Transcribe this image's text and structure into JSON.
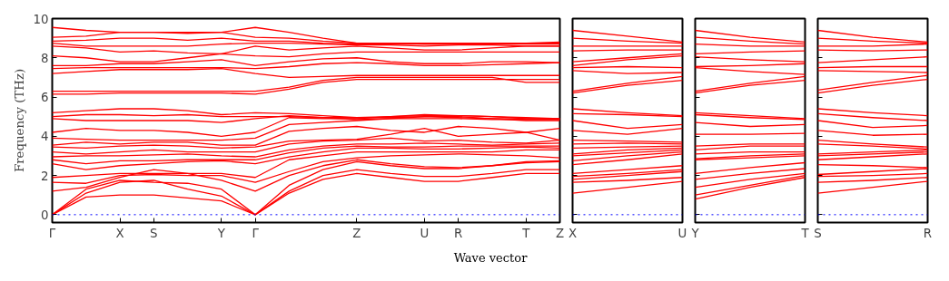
{
  "chart_data": [
    {
      "type": "line",
      "ylabel": "Frequency (THz)",
      "xlabel": "Wave vector",
      "ylim": [
        -0.4,
        10
      ],
      "yticks": [
        0,
        2,
        4,
        6,
        8,
        10
      ],
      "categories": [
        "Γ",
        null,
        "X",
        "S",
        null,
        "Y",
        "Γ",
        null,
        null,
        "Z",
        null,
        "U",
        "R",
        null,
        "T",
        "Z"
      ],
      "grid": false,
      "line_style": "solid",
      "ref_lines": [
        {
          "axis": "y",
          "value": 0,
          "color": "#0000ff",
          "line_style": "dotted"
        }
      ],
      "series": [
        {
          "color": "#ff0000",
          "values": [
            0,
            0.9,
            1.0,
            1.0,
            0.85,
            0.7,
            0,
            1.1,
            1.8,
            2.1,
            1.9,
            1.7,
            1.7,
            1.9,
            2.1,
            2.1
          ]
        },
        {
          "color": "#ff0000",
          "values": [
            0,
            1.1,
            1.65,
            1.75,
            1.3,
            0.95,
            0,
            1.2,
            2.0,
            2.3,
            2.1,
            1.95,
            1.95,
            2.1,
            2.3,
            2.3
          ]
        },
        {
          "color": "#ff0000",
          "values": [
            0,
            1.3,
            1.75,
            1.65,
            1.6,
            1.3,
            0,
            1.5,
            2.3,
            2.7,
            2.5,
            2.35,
            2.35,
            2.5,
            2.65,
            2.7
          ]
        },
        {
          "color": "#ff0000",
          "values": [
            1.2,
            1.4,
            1.9,
            2.3,
            2.1,
            1.75,
            1.2,
            2.0,
            2.5,
            2.8,
            2.6,
            2.45,
            2.4,
            2.5,
            2.7,
            2.75
          ]
        },
        {
          "color": "#ff0000",
          "values": [
            1.65,
            1.6,
            2.0,
            2.05,
            2.0,
            2.0,
            1.65,
            2.2,
            2.7,
            2.9,
            3.0,
            3.05,
            3.1,
            3.05,
            3.0,
            2.9
          ]
        },
        {
          "color": "#ff0000",
          "values": [
            1.9,
            2.0,
            2.1,
            2.1,
            2.1,
            2.1,
            1.9,
            2.8,
            3.0,
            3.2,
            3.2,
            3.2,
            3.2,
            3.2,
            3.3,
            3.3
          ]
        },
        {
          "color": "#ff0000",
          "values": [
            2.6,
            2.3,
            2.5,
            2.6,
            2.7,
            2.75,
            2.6,
            2.95,
            3.2,
            3.4,
            3.4,
            3.35,
            3.35,
            3.4,
            3.45,
            3.4
          ]
        },
        {
          "color": "#ff0000",
          "values": [
            2.8,
            2.6,
            2.75,
            2.75,
            2.8,
            2.8,
            2.8,
            3.15,
            3.4,
            3.5,
            3.45,
            3.45,
            3.5,
            3.5,
            3.5,
            3.5
          ]
        },
        {
          "color": "#ff0000",
          "values": [
            2.95,
            3.0,
            3.0,
            3.05,
            3.1,
            3.0,
            2.95,
            3.3,
            3.5,
            3.6,
            3.6,
            3.65,
            3.6,
            3.55,
            3.6,
            3.65
          ]
        },
        {
          "color": "#ff0000",
          "values": [
            3.2,
            3.1,
            3.2,
            3.3,
            3.2,
            3.2,
            3.2,
            3.6,
            3.75,
            3.8,
            3.9,
            3.75,
            3.8,
            3.7,
            3.65,
            3.8
          ]
        },
        {
          "color": "#ff0000",
          "values": [
            3.45,
            3.4,
            3.5,
            3.55,
            3.5,
            3.4,
            3.45,
            3.75,
            3.8,
            3.85,
            4.1,
            4.4,
            4.0,
            4.1,
            4.2,
            3.8
          ]
        },
        {
          "color": "#ff0000",
          "values": [
            3.55,
            3.7,
            3.6,
            3.7,
            3.7,
            3.55,
            3.55,
            4.25,
            4.4,
            4.5,
            4.3,
            4.2,
            4.5,
            4.4,
            4.2,
            4.4
          ]
        },
        {
          "color": "#ff0000",
          "values": [
            3.9,
            3.85,
            3.8,
            3.8,
            3.8,
            3.8,
            3.9,
            4.6,
            4.7,
            4.8,
            4.9,
            5.0,
            5.0,
            4.9,
            4.8,
            4.8
          ]
        },
        {
          "color": "#ff0000",
          "values": [
            4.2,
            4.4,
            4.3,
            4.3,
            4.2,
            4.0,
            4.2,
            4.95,
            4.9,
            4.9,
            5.0,
            5.1,
            5.05,
            5.0,
            4.9,
            4.9
          ]
        },
        {
          "color": "#ff0000",
          "values": [
            4.9,
            4.8,
            4.8,
            4.8,
            4.8,
            4.7,
            4.9,
            5.05,
            4.95,
            4.85,
            4.9,
            4.9,
            4.9,
            4.85,
            4.85,
            4.85
          ]
        },
        {
          "color": "#ff0000",
          "values": [
            5.0,
            5.1,
            5.1,
            5.05,
            5.1,
            5.0,
            5.0,
            5.0,
            4.95,
            4.95,
            5.0,
            5.05,
            5.05,
            5.0,
            4.95,
            4.9
          ]
        },
        {
          "color": "#ff0000",
          "values": [
            5.2,
            5.3,
            5.4,
            5.4,
            5.3,
            5.1,
            5.2,
            5.15,
            5.05,
            4.95,
            4.95,
            5.0,
            4.95,
            4.9,
            4.88,
            4.88
          ]
        },
        {
          "color": "#ff0000",
          "values": [
            6.15,
            6.15,
            6.2,
            6.2,
            6.2,
            6.2,
            6.15,
            6.4,
            6.75,
            6.9,
            6.9,
            6.9,
            6.9,
            6.9,
            6.9,
            6.9
          ]
        },
        {
          "color": "#ff0000",
          "values": [
            6.3,
            6.3,
            6.3,
            6.3,
            6.3,
            6.3,
            6.3,
            6.5,
            6.85,
            7.0,
            7.0,
            7.0,
            7.0,
            7.0,
            6.75,
            6.75
          ]
        },
        {
          "color": "#ff0000",
          "values": [
            7.2,
            7.3,
            7.4,
            7.4,
            7.4,
            7.45,
            7.2,
            7.0,
            7.05,
            7.1,
            7.1,
            7.1,
            7.1,
            7.1,
            7.1,
            7.1
          ]
        },
        {
          "color": "#ff0000",
          "values": [
            7.45,
            7.5,
            7.5,
            7.5,
            7.5,
            7.5,
            7.45,
            7.55,
            7.7,
            7.75,
            7.7,
            7.6,
            7.6,
            7.65,
            7.7,
            7.75
          ]
        },
        {
          "color": "#ff0000",
          "values": [
            7.6,
            7.6,
            7.7,
            7.7,
            7.8,
            7.9,
            7.6,
            7.8,
            7.95,
            8.0,
            7.8,
            7.7,
            7.7,
            7.8,
            7.8,
            7.75
          ]
        },
        {
          "color": "#ff0000",
          "values": [
            8.1,
            8.0,
            7.8,
            7.8,
            8.0,
            8.2,
            8.1,
            8.05,
            8.2,
            8.3,
            8.3,
            8.3,
            8.3,
            8.3,
            8.3,
            8.3
          ]
        },
        {
          "color": "#ff0000",
          "values": [
            8.6,
            8.5,
            8.3,
            8.35,
            8.25,
            8.2,
            8.6,
            8.4,
            8.5,
            8.6,
            8.5,
            8.4,
            8.4,
            8.5,
            8.6,
            8.6
          ]
        },
        {
          "color": "#ff0000",
          "values": [
            8.75,
            8.6,
            8.6,
            8.6,
            8.6,
            8.7,
            8.75,
            8.75,
            8.7,
            8.65,
            8.65,
            8.6,
            8.65,
            8.65,
            8.6,
            8.6
          ]
        },
        {
          "color": "#ff0000",
          "values": [
            8.85,
            8.9,
            9.0,
            9.0,
            8.9,
            9.0,
            8.85,
            8.85,
            8.75,
            8.7,
            8.7,
            8.7,
            8.7,
            8.7,
            8.7,
            8.7
          ]
        },
        {
          "color": "#ff0000",
          "values": [
            9.05,
            9.1,
            9.3,
            9.3,
            9.3,
            9.3,
            9.05,
            9.0,
            8.85,
            8.75,
            8.75,
            8.7,
            8.7,
            8.75,
            8.75,
            8.75
          ]
        },
        {
          "color": "#ff0000",
          "values": [
            9.55,
            9.4,
            9.3,
            9.3,
            9.25,
            9.3,
            9.55,
            9.3,
            9.0,
            8.75,
            8.75,
            8.75,
            8.75,
            8.75,
            8.75,
            8.8
          ]
        }
      ]
    },
    {
      "type": "line",
      "categories": [
        "X",
        null,
        "U"
      ],
      "ylim": [
        -0.4,
        10
      ],
      "yticks": [
        0,
        2,
        4,
        6,
        8,
        10
      ],
      "tick_labels": "x",
      "grid": false,
      "line_style": "solid",
      "ref_lines": [
        {
          "axis": "y",
          "value": 0,
          "color": "#0000ff",
          "line_style": "dotted"
        }
      ],
      "series": [
        {
          "color": "#ff0000",
          "values": [
            1.1,
            1.4,
            1.7
          ]
        },
        {
          "color": "#ff0000",
          "values": [
            1.65,
            1.75,
            1.9
          ]
        },
        {
          "color": "#ff0000",
          "values": [
            1.8,
            2.0,
            2.2
          ]
        },
        {
          "color": "#ff0000",
          "values": [
            1.95,
            2.1,
            2.3
          ]
        },
        {
          "color": "#ff0000",
          "values": [
            2.1,
            2.3,
            2.5
          ]
        },
        {
          "color": "#ff0000",
          "values": [
            2.55,
            2.8,
            3.1
          ]
        },
        {
          "color": "#ff0000",
          "values": [
            2.75,
            3.0,
            3.2
          ]
        },
        {
          "color": "#ff0000",
          "values": [
            3.0,
            3.15,
            3.3
          ]
        },
        {
          "color": "#ff0000",
          "values": [
            3.1,
            3.3,
            3.4
          ]
        },
        {
          "color": "#ff0000",
          "values": [
            3.4,
            3.45,
            3.5
          ]
        },
        {
          "color": "#ff0000",
          "values": [
            3.6,
            3.65,
            3.6
          ]
        },
        {
          "color": "#ff0000",
          "values": [
            3.8,
            3.75,
            3.7
          ]
        },
        {
          "color": "#ff0000",
          "values": [
            4.3,
            4.1,
            4.4
          ]
        },
        {
          "color": "#ff0000",
          "values": [
            4.8,
            4.4,
            4.6
          ]
        },
        {
          "color": "#ff0000",
          "values": [
            5.15,
            5.1,
            5.0
          ]
        },
        {
          "color": "#ff0000",
          "values": [
            5.4,
            5.2,
            5.05
          ]
        },
        {
          "color": "#ff0000",
          "values": [
            6.2,
            6.6,
            6.85
          ]
        },
        {
          "color": "#ff0000",
          "values": [
            6.3,
            6.7,
            7.05
          ]
        },
        {
          "color": "#ff0000",
          "values": [
            7.35,
            7.2,
            7.25
          ]
        },
        {
          "color": "#ff0000",
          "values": [
            7.5,
            7.55,
            7.5
          ]
        },
        {
          "color": "#ff0000",
          "values": [
            7.6,
            7.9,
            8.1
          ]
        },
        {
          "color": "#ff0000",
          "values": [
            7.8,
            8.0,
            8.2
          ]
        },
        {
          "color": "#ff0000",
          "values": [
            8.35,
            8.4,
            8.4
          ]
        },
        {
          "color": "#ff0000",
          "values": [
            8.6,
            8.6,
            8.6
          ]
        },
        {
          "color": "#ff0000",
          "values": [
            9.0,
            8.85,
            8.75
          ]
        },
        {
          "color": "#ff0000",
          "values": [
            9.4,
            9.1,
            8.8
          ]
        }
      ]
    },
    {
      "type": "line",
      "categories": [
        "Y",
        null,
        "T"
      ],
      "ylim": [
        -0.4,
        10
      ],
      "yticks": [
        0,
        2,
        4,
        6,
        8,
        10
      ],
      "tick_labels": "x",
      "grid": false,
      "line_style": "solid",
      "ref_lines": [
        {
          "axis": "y",
          "value": 0,
          "color": "#0000ff",
          "line_style": "dotted"
        }
      ],
      "series": [
        {
          "color": "#ff0000",
          "values": [
            0.8,
            1.4,
            1.9
          ]
        },
        {
          "color": "#ff0000",
          "values": [
            1.0,
            1.5,
            2.0
          ]
        },
        {
          "color": "#ff0000",
          "values": [
            1.4,
            1.8,
            2.1
          ]
        },
        {
          "color": "#ff0000",
          "values": [
            1.8,
            2.1,
            2.35
          ]
        },
        {
          "color": "#ff0000",
          "values": [
            2.1,
            2.4,
            2.65
          ]
        },
        {
          "color": "#ff0000",
          "values": [
            2.8,
            2.9,
            3.0
          ]
        },
        {
          "color": "#ff0000",
          "values": [
            2.85,
            3.0,
            3.1
          ]
        },
        {
          "color": "#ff0000",
          "values": [
            3.1,
            3.2,
            3.2
          ]
        },
        {
          "color": "#ff0000",
          "values": [
            3.3,
            3.5,
            3.5
          ]
        },
        {
          "color": "#ff0000",
          "values": [
            3.5,
            3.6,
            3.6
          ]
        },
        {
          "color": "#ff0000",
          "values": [
            4.1,
            4.1,
            4.15
          ]
        },
        {
          "color": "#ff0000",
          "values": [
            4.7,
            4.5,
            4.6
          ]
        },
        {
          "color": "#ff0000",
          "values": [
            5.1,
            4.95,
            4.85
          ]
        },
        {
          "color": "#ff0000",
          "values": [
            5.2,
            5.05,
            4.9
          ]
        },
        {
          "color": "#ff0000",
          "values": [
            6.2,
            6.6,
            6.85
          ]
        },
        {
          "color": "#ff0000",
          "values": [
            6.3,
            6.7,
            7.05
          ]
        },
        {
          "color": "#ff0000",
          "values": [
            7.5,
            7.3,
            7.15
          ]
        },
        {
          "color": "#ff0000",
          "values": [
            7.55,
            7.6,
            7.7
          ]
        },
        {
          "color": "#ff0000",
          "values": [
            8.05,
            7.9,
            7.8
          ]
        },
        {
          "color": "#ff0000",
          "values": [
            8.2,
            8.3,
            8.35
          ]
        },
        {
          "color": "#ff0000",
          "values": [
            8.7,
            8.6,
            8.6
          ]
        },
        {
          "color": "#ff0000",
          "values": [
            9.05,
            8.85,
            8.7
          ]
        },
        {
          "color": "#ff0000",
          "values": [
            9.4,
            9.05,
            8.8
          ]
        }
      ]
    },
    {
      "type": "line",
      "categories": [
        "S",
        null,
        "R"
      ],
      "ylim": [
        -0.4,
        10
      ],
      "yticks": [
        0,
        2,
        4,
        6,
        8,
        10
      ],
      "tick_labels": "x",
      "grid": false,
      "line_style": "solid",
      "ref_lines": [
        {
          "axis": "y",
          "value": 0,
          "color": "#0000ff",
          "line_style": "dotted"
        }
      ],
      "series": [
        {
          "color": "#ff0000",
          "values": [
            1.1,
            1.4,
            1.7
          ]
        },
        {
          "color": "#ff0000",
          "values": [
            1.65,
            1.75,
            1.9
          ]
        },
        {
          "color": "#ff0000",
          "values": [
            1.95,
            2.0,
            2.1
          ]
        },
        {
          "color": "#ff0000",
          "values": [
            2.05,
            2.2,
            2.35
          ]
        },
        {
          "color": "#ff0000",
          "values": [
            2.55,
            2.5,
            2.4
          ]
        },
        {
          "color": "#ff0000",
          "values": [
            2.8,
            2.95,
            3.1
          ]
        },
        {
          "color": "#ff0000",
          "values": [
            3.0,
            3.1,
            3.2
          ]
        },
        {
          "color": "#ff0000",
          "values": [
            3.1,
            3.2,
            3.3
          ]
        },
        {
          "color": "#ff0000",
          "values": [
            3.6,
            3.5,
            3.35
          ]
        },
        {
          "color": "#ff0000",
          "values": [
            3.8,
            3.6,
            3.45
          ]
        },
        {
          "color": "#ff0000",
          "values": [
            4.3,
            4.05,
            4.1
          ]
        },
        {
          "color": "#ff0000",
          "values": [
            4.8,
            4.45,
            4.55
          ]
        },
        {
          "color": "#ff0000",
          "values": [
            5.15,
            4.95,
            4.8
          ]
        },
        {
          "color": "#ff0000",
          "values": [
            5.4,
            5.2,
            5.05
          ]
        },
        {
          "color": "#ff0000",
          "values": [
            6.2,
            6.6,
            6.9
          ]
        },
        {
          "color": "#ff0000",
          "values": [
            6.35,
            6.75,
            7.1
          ]
        },
        {
          "color": "#ff0000",
          "values": [
            7.35,
            7.3,
            7.25
          ]
        },
        {
          "color": "#ff0000",
          "values": [
            7.5,
            7.55,
            7.55
          ]
        },
        {
          "color": "#ff0000",
          "values": [
            7.75,
            7.9,
            8.05
          ]
        },
        {
          "color": "#ff0000",
          "values": [
            8.4,
            8.35,
            8.4
          ]
        },
        {
          "color": "#ff0000",
          "values": [
            8.6,
            8.6,
            8.7
          ]
        },
        {
          "color": "#ff0000",
          "values": [
            9.0,
            8.85,
            8.75
          ]
        },
        {
          "color": "#ff0000",
          "values": [
            9.4,
            9.05,
            8.8
          ]
        }
      ]
    }
  ]
}
